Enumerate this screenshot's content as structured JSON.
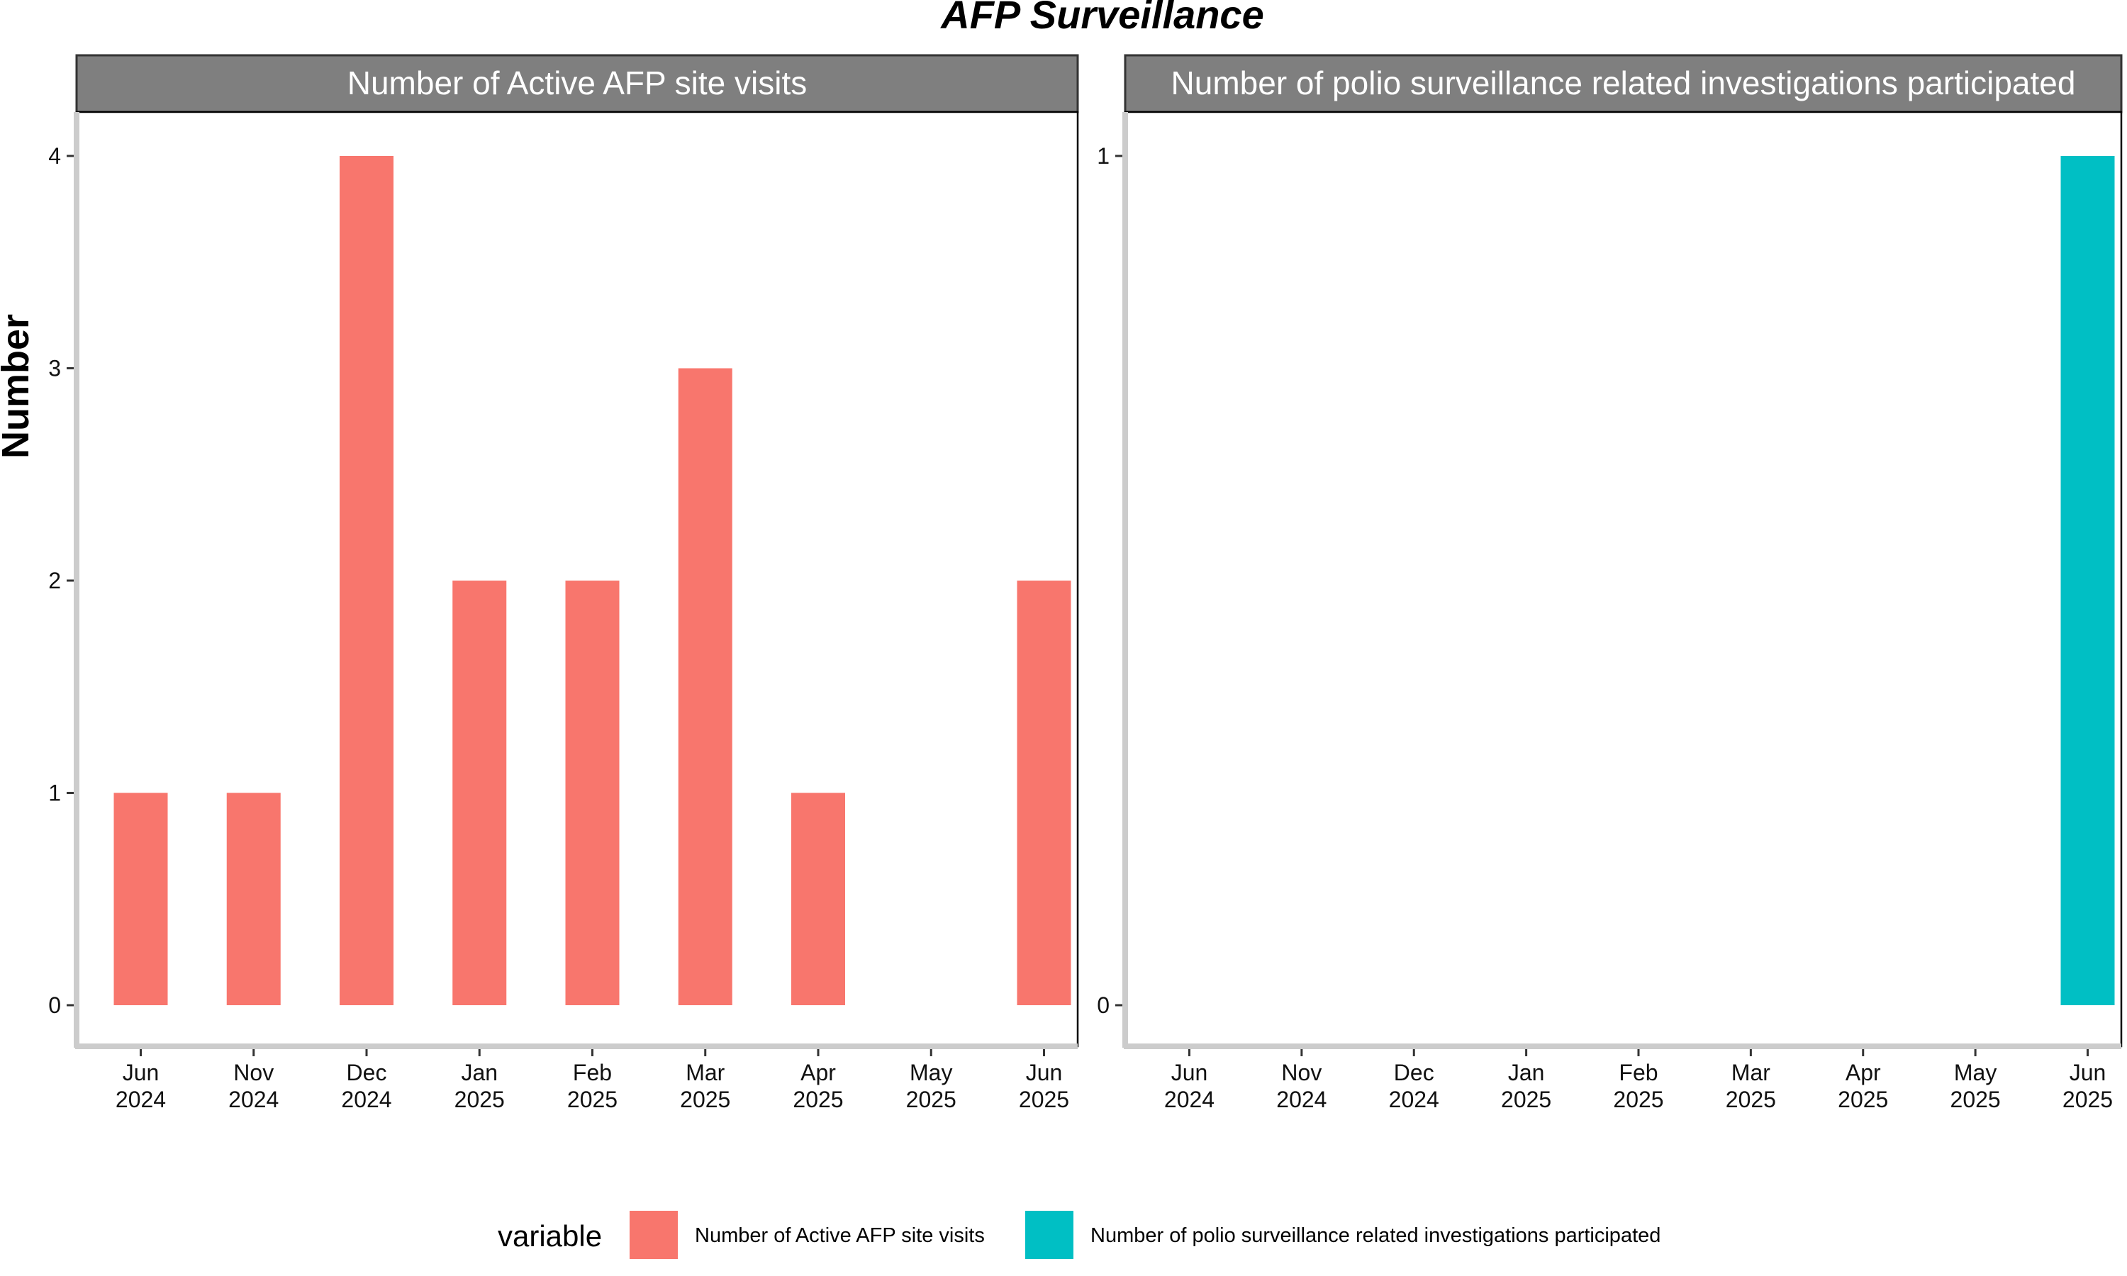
{
  "chart_data": {
    "type": "bar",
    "title": "AFP Surveillance",
    "ylabel": "Number",
    "xlabel": "",
    "categories": [
      [
        "Jun",
        "2024"
      ],
      [
        "Nov",
        "2024"
      ],
      [
        "Dec",
        "2024"
      ],
      [
        "Jan",
        "2025"
      ],
      [
        "Feb",
        "2025"
      ],
      [
        "Mar",
        "2025"
      ],
      [
        "Apr",
        "2025"
      ],
      [
        "May",
        "2025"
      ],
      [
        "Jun",
        "2025"
      ]
    ],
    "panels": [
      {
        "strip": "Number of Active AFP site visits",
        "color": "#F8766D",
        "ylim": [
          0,
          4
        ],
        "yticks": [
          "0",
          "1",
          "2",
          "3",
          "4"
        ],
        "values": [
          1,
          1,
          4,
          2,
          2,
          3,
          1,
          null,
          2
        ]
      },
      {
        "strip": "Number of polio surveillance related investigations participated",
        "color": "#00BFC4",
        "ylim": [
          0,
          1
        ],
        "yticks": [
          "0",
          "1"
        ],
        "values": [
          null,
          null,
          null,
          null,
          null,
          null,
          null,
          null,
          1
        ]
      }
    ],
    "legend": {
      "title": "variable",
      "position": "bottom",
      "items": [
        {
          "label": "Number of Active AFP site visits",
          "color": "#F8766D"
        },
        {
          "label": "Number of polio surveillance related investigations participated",
          "color": "#00BFC4"
        }
      ]
    },
    "grid": false
  }
}
